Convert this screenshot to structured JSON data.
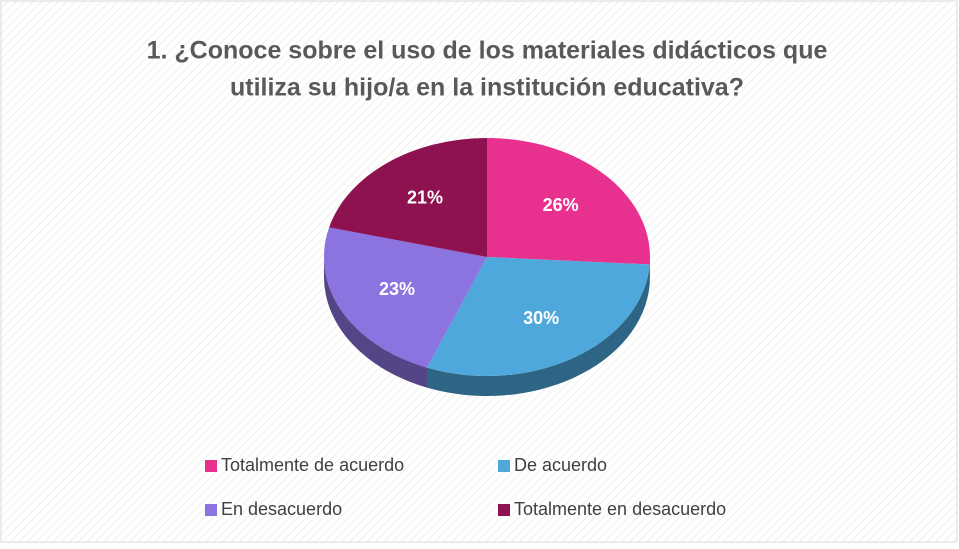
{
  "chart_data": {
    "type": "pie",
    "title": [
      "1. ¿Conoce sobre el uso de los materiales didácticos que",
      "utiliza su hijo/a en la institución educativa?"
    ],
    "categories": [
      "Totalmente de acuerdo",
      "De acuerdo",
      "En desacuerdo",
      "Totalmente en desacuerdo"
    ],
    "values": [
      26,
      30,
      23,
      21
    ],
    "value_labels": [
      "26%",
      "30%",
      "23%",
      "21%"
    ],
    "colors": [
      "#e8318f",
      "#4fa8dc",
      "#8b73e0",
      "#8e1150"
    ],
    "legend": "bottom"
  }
}
